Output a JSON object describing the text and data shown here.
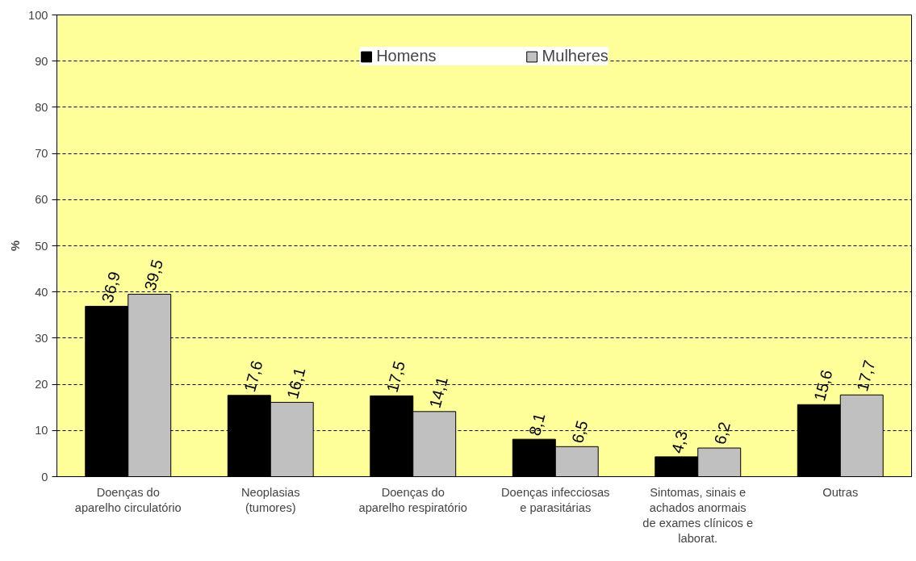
{
  "chart_data": {
    "type": "bar",
    "ylabel": "%",
    "categories": [
      "Doenças do\naparelho circulatório",
      "Neoplasias\n(tumores)",
      "Doenças do\naparelho respiratório",
      "Doenças infecciosas\ne parasitárias",
      "Sintomas, sinais e\nachados anormais\nde exames clínicos e\nlaborat.",
      "Outras"
    ],
    "series": [
      {
        "name": "Homens",
        "color": "#000000",
        "values": [
          36.9,
          17.6,
          17.5,
          8.1,
          4.3,
          15.6
        ],
        "value_labels": [
          "36,9",
          "17,6",
          "17,5",
          "8,1",
          "4,3",
          "15,6"
        ]
      },
      {
        "name": "Mulheres",
        "color": "#c0c0c0",
        "values": [
          39.5,
          16.1,
          14.1,
          6.5,
          6.2,
          17.7
        ],
        "value_labels": [
          "39,5",
          "16,1",
          "14,1",
          "6,5",
          "6,2",
          "17,7"
        ]
      }
    ],
    "ylim": [
      0,
      100
    ],
    "yticks": [
      0,
      10,
      20,
      30,
      40,
      50,
      60,
      70,
      80,
      90,
      100
    ],
    "grid": "y",
    "legend": "top"
  }
}
